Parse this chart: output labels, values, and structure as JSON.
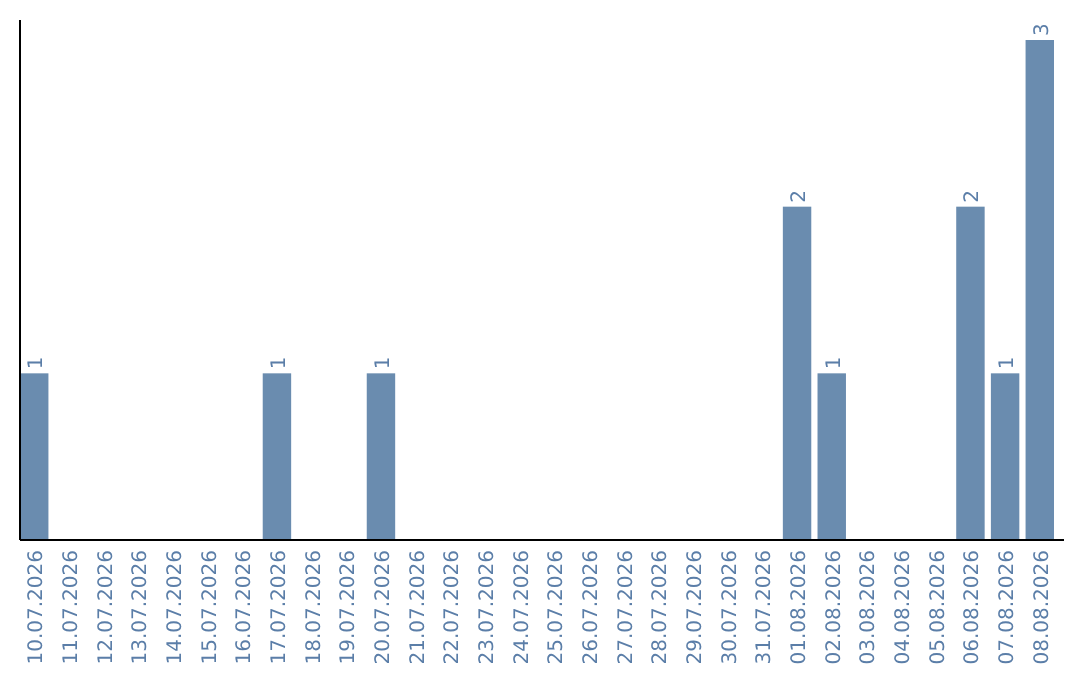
{
  "chart_data": {
    "type": "bar",
    "categories": [
      "10.07.2026",
      "11.07.2026",
      "12.07.2026",
      "13.07.2026",
      "14.07.2026",
      "15.07.2026",
      "16.07.2026",
      "17.07.2026",
      "18.07.2026",
      "19.07.2026",
      "20.07.2026",
      "21.07.2026",
      "22.07.2026",
      "23.07.2026",
      "24.07.2026",
      "25.07.2026",
      "26.07.2026",
      "27.07.2026",
      "28.07.2026",
      "29.07.2026",
      "30.07.2026",
      "31.07.2026",
      "01.08.2026",
      "02.08.2026",
      "03.08.2026",
      "04.08.2026",
      "05.08.2026",
      "06.08.2026",
      "07.08.2026",
      "08.08.2026"
    ],
    "values": [
      1,
      0,
      0,
      0,
      0,
      0,
      0,
      1,
      0,
      0,
      1,
      0,
      0,
      0,
      0,
      0,
      0,
      0,
      0,
      0,
      0,
      0,
      2,
      1,
      0,
      0,
      0,
      2,
      1,
      3
    ],
    "value_labels": [
      "1",
      null,
      null,
      null,
      null,
      null,
      null,
      "1",
      null,
      null,
      "1",
      null,
      null,
      null,
      null,
      null,
      null,
      null,
      null,
      null,
      null,
      null,
      "2",
      "1",
      null,
      null,
      null,
      "2",
      "1",
      "3"
    ],
    "color": "#6a8caf"
  }
}
